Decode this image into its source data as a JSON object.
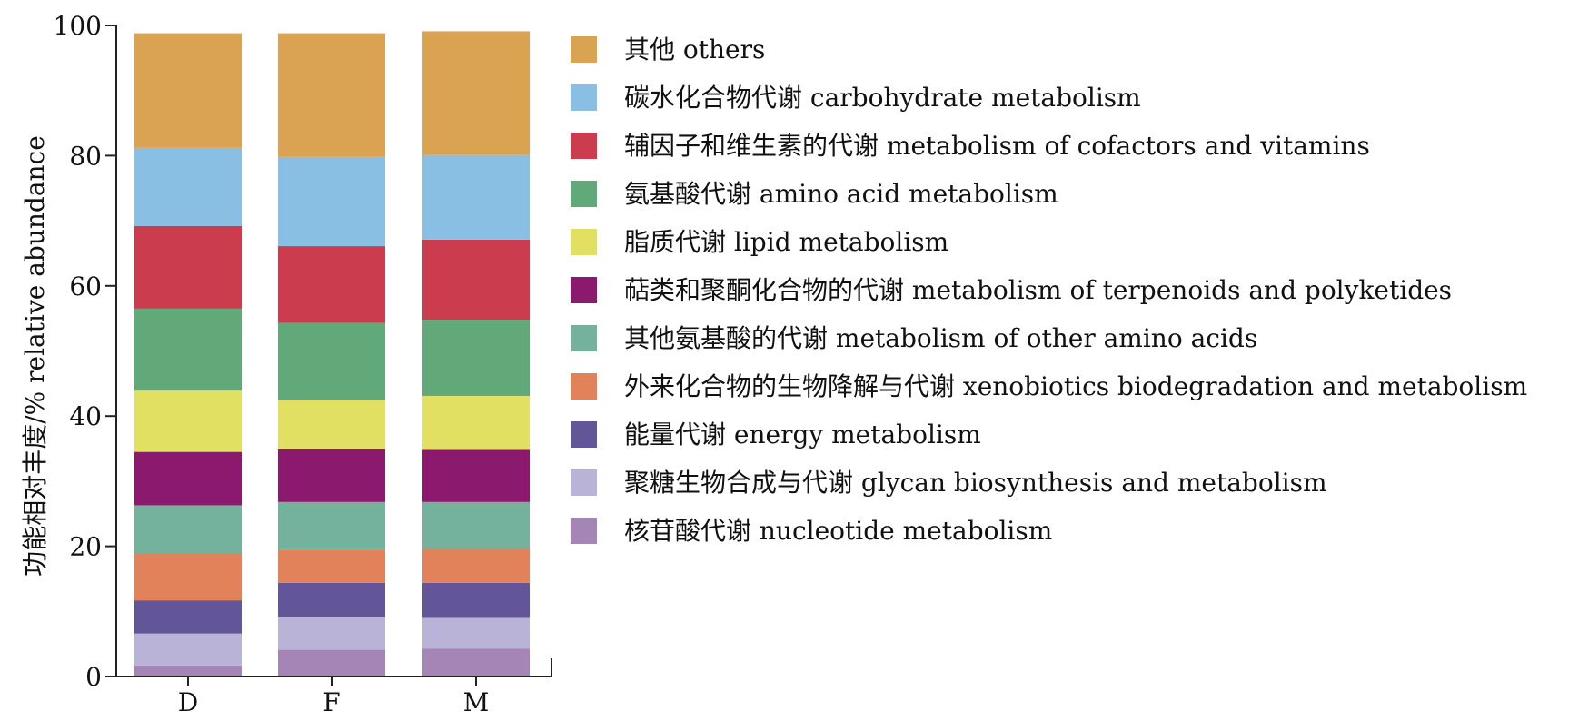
{
  "chart_data": {
    "type": "bar",
    "stacked": true,
    "categories": [
      "D",
      "F",
      "M"
    ],
    "ylabel": "功能相对丰度/% relative abundance",
    "ylim": [
      0,
      100
    ],
    "yticks": [
      0,
      20,
      40,
      60,
      80,
      100
    ],
    "grid": false,
    "legend_position": "right",
    "series": [
      {
        "name": "核苷酸代谢 nucleotide metabolism",
        "color": "#a585b5",
        "values": [
          1.7,
          4.1,
          4.3
        ]
      },
      {
        "name": "聚糖生物合成与代谢 glycan biosynthesis and metabolism",
        "color": "#b9b3d7",
        "values": [
          4.9,
          5.0,
          4.7
        ]
      },
      {
        "name": "能量代谢 energy  metabolism",
        "color": "#625698",
        "values": [
          5.1,
          5.3,
          5.4
        ]
      },
      {
        "name": "外来化合物的生物降解与代谢 xenobiotics biodegradation and metabolism",
        "color": "#e2825a",
        "values": [
          7.2,
          5.1,
          5.2
        ]
      },
      {
        "name": "其他氨基酸的代谢 metabolism of other amino acids",
        "color": "#74b29e",
        "values": [
          7.4,
          7.3,
          7.2
        ]
      },
      {
        "name": "萜类和聚酮化合物的代谢 metabolism of terpenoids and polyketides",
        "color": "#8b1a6f",
        "values": [
          8.2,
          8.1,
          8.0
        ]
      },
      {
        "name": "脂质代谢 lipid metabolism",
        "color": "#e2e063",
        "values": [
          9.4,
          7.6,
          8.3
        ]
      },
      {
        "name": "氨基酸代谢 amino acid metabolism",
        "color": "#62a97a",
        "values": [
          12.6,
          11.8,
          11.7
        ]
      },
      {
        "name": "辅因子和维生素的代谢 metabolism of cofactors and vitamins",
        "color": "#cb3c4e",
        "values": [
          12.7,
          11.8,
          12.3
        ]
      },
      {
        "name": "碳水化合物代谢 carbohydrate metabolism",
        "color": "#88bfe3",
        "values": [
          12.0,
          13.7,
          13.0
        ]
      },
      {
        "name": "其他 others",
        "color": "#d9a352",
        "values": [
          17.6,
          19.0,
          19.0
        ]
      }
    ]
  }
}
